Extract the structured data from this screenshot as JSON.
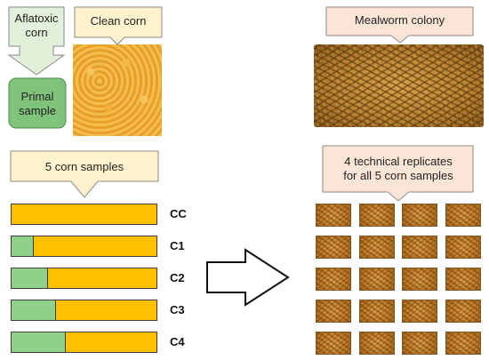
{
  "labels": {
    "aflatoxic_corn": "Aflatoxic corn",
    "clean_corn": "Clean corn",
    "primal_sample": "Primal sample",
    "five_corn_samples": "5 corn samples",
    "mealworm_colony": "Mealworm colony",
    "replicates": "4 technical replicates for all 5 corn samples"
  },
  "samples": [
    {
      "label": "CC",
      "aflatoxic_fraction": 0.0
    },
    {
      "label": "C1",
      "aflatoxic_fraction": 0.15
    },
    {
      "label": "C2",
      "aflatoxic_fraction": 0.25
    },
    {
      "label": "C3",
      "aflatoxic_fraction": 0.3
    },
    {
      "label": "C4",
      "aflatoxic_fraction": 0.37
    }
  ],
  "replicate_grid": {
    "rows": 5,
    "columns": 4
  },
  "colors": {
    "aflatoxic": "#8fd18a",
    "clean": "#ffc000",
    "callout_green": "#e2f0d9",
    "callout_peach": "#fbe5d6",
    "callout_cream": "#fff2cc",
    "primal_green": "#7fc47a"
  },
  "icons": [
    "down-arrow-icon",
    "right-arrow-icon",
    "corn-photo",
    "mealworm-photo"
  ]
}
